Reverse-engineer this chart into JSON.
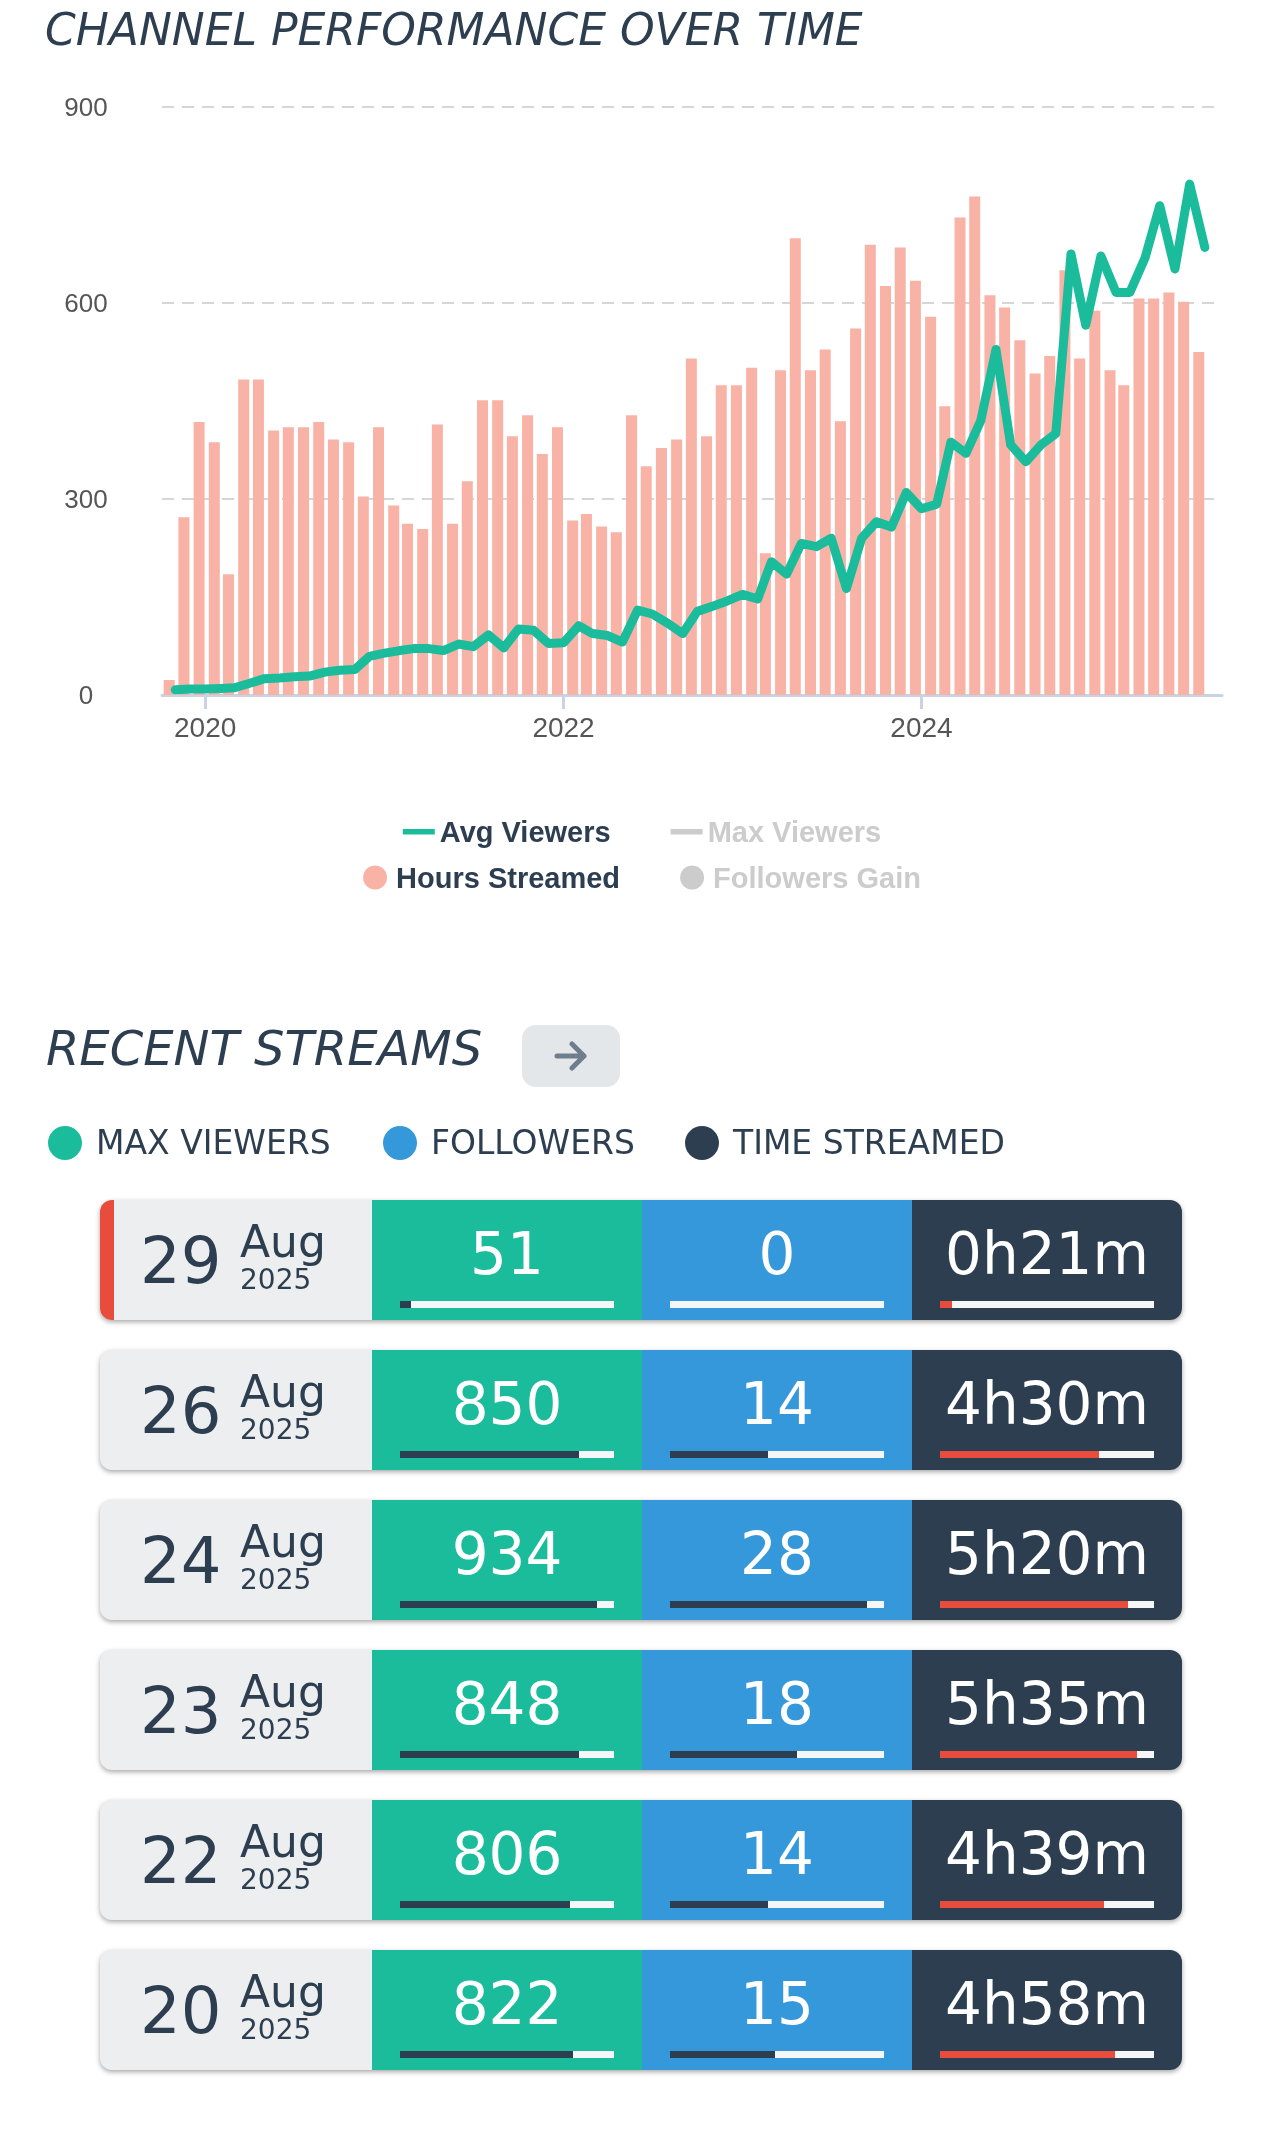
{
  "chart_data": [
    {
      "type": "bar",
      "title": "CHANNEL PERFORMANCE OVER TIME",
      "x": [
        "2019-11",
        "2019-12",
        "2020-01",
        "2020-02",
        "2020-03",
        "2020-04",
        "2020-05",
        "2020-06",
        "2020-07",
        "2020-08",
        "2020-09",
        "2020-10",
        "2020-11",
        "2020-12",
        "2021-01",
        "2021-02",
        "2021-03",
        "2021-04",
        "2021-05",
        "2021-06",
        "2021-07",
        "2021-08",
        "2021-09",
        "2021-10",
        "2021-11",
        "2021-12",
        "2022-01",
        "2022-02",
        "2022-03",
        "2022-04",
        "2022-05",
        "2022-06",
        "2022-07",
        "2022-08",
        "2022-09",
        "2022-10",
        "2022-11",
        "2022-12",
        "2023-01",
        "2023-02",
        "2023-03",
        "2023-04",
        "2023-05",
        "2023-06",
        "2023-07",
        "2023-08",
        "2023-09",
        "2023-10",
        "2023-11",
        "2023-12",
        "2024-01",
        "2024-02",
        "2024-03",
        "2024-04",
        "2024-05",
        "2024-06",
        "2024-07",
        "2024-08",
        "2024-09",
        "2024-10",
        "2024-11",
        "2024-12",
        "2025-01",
        "2025-02",
        "2025-03",
        "2025-04",
        "2025-05",
        "2025-06",
        "2025-07",
        "2025-08"
      ],
      "series": [
        {
          "name": "Avg Viewers",
          "type": "line",
          "color": "#1abc9c",
          "values": [
            8,
            9,
            9,
            10,
            11,
            18,
            25,
            26,
            28,
            29,
            35,
            38,
            39,
            59,
            64,
            68,
            71,
            71,
            68,
            78,
            74,
            92,
            72,
            101,
            99,
            79,
            80,
            106,
            94,
            91,
            81,
            130,
            124,
            110,
            94,
            128,
            136,
            144,
            154,
            147,
            204,
            185,
            232,
            227,
            240,
            163,
            240,
            265,
            257,
            310,
            285,
            292,
            387,
            370,
            420,
            529,
            383,
            357,
            383,
            400,
            675,
            566,
            672,
            616,
            616,
            669,
            749,
            652,
            782,
            685
          ]
        },
        {
          "name": "Max Viewers",
          "type": "line",
          "color": "#cccccc",
          "values": [
            null,
            null,
            null,
            null,
            null,
            null,
            null,
            null,
            null,
            null,
            null,
            null,
            null,
            null,
            null,
            null,
            null,
            null,
            null,
            null,
            null,
            null,
            null,
            null,
            null,
            null,
            null,
            null,
            null,
            null,
            null,
            null,
            null,
            null,
            null,
            null,
            null,
            null,
            null,
            null,
            null,
            null,
            null,
            null,
            null,
            null,
            null,
            null,
            null,
            null,
            null,
            null,
            null,
            null,
            null,
            null,
            null,
            null,
            null,
            null,
            null,
            null,
            null,
            null,
            null,
            null,
            null,
            null,
            null,
            null
          ]
        },
        {
          "name": "Hours Streamed",
          "type": "bar",
          "color": "#f8b2a6",
          "values": [
            23,
            272,
            418,
            387,
            185,
            483,
            483,
            405,
            410,
            410,
            418,
            391,
            387,
            304,
            410,
            290,
            262,
            254,
            414,
            262,
            327,
            451,
            451,
            396,
            428,
            369,
            410,
            267,
            277,
            258,
            249,
            428,
            350,
            378,
            391,
            515,
            396,
            474,
            474,
            501,
            217,
            497,
            699,
            497,
            529,
            419,
            561,
            689,
            626,
            685,
            634,
            579,
            442,
            731,
            763,
            612,
            593,
            543,
            492,
            519,
            650,
            515,
            588,
            497,
            474,
            607,
            607,
            616,
            602,
            525
          ]
        },
        {
          "name": "Followers Gain",
          "type": "bar",
          "color": "#cccccc",
          "values": [
            null,
            null,
            null,
            null,
            null,
            null,
            null,
            null,
            null,
            null,
            null,
            null,
            null,
            null,
            null,
            null,
            null,
            null,
            null,
            null,
            null,
            null,
            null,
            null,
            null,
            null,
            null,
            null,
            null,
            null,
            null,
            null,
            null,
            null,
            null,
            null,
            null,
            null,
            null,
            null,
            null,
            null,
            null,
            null,
            null,
            null,
            null,
            null,
            null,
            null,
            null,
            null,
            null,
            null,
            null,
            null,
            null,
            null,
            null,
            null,
            null,
            null,
            null,
            null,
            null,
            null,
            null,
            null,
            null,
            null
          ]
        }
      ],
      "xlim": [
        "2019-10-05",
        "2025-09-05"
      ],
      "xticks": [
        "2020",
        "2022",
        "2024"
      ],
      "ylim": [
        0,
        900
      ],
      "yticks": [
        0,
        300,
        600,
        900
      ],
      "grid": "y",
      "legend": "bottom",
      "marker": "none",
      "line_style": "solid"
    },
    {
      "type": "other",
      "title": "RECENT STREAMS",
      "data_labels": true,
      "legend": "top left",
      "categories": [
        "29 Aug 2025",
        "26 Aug 2025",
        "24 Aug 2025",
        "23 Aug 2025",
        "22 Aug 2025",
        "20 Aug 2025"
      ],
      "series": [
        {
          "name": "MAX VIEWERS",
          "color": "#1abc9c",
          "values": [
            51,
            850,
            934,
            848,
            806,
            822
          ]
        },
        {
          "name": "FOLLOWERS",
          "color": "#3498db",
          "values": [
            0,
            14,
            28,
            18,
            14,
            15
          ]
        },
        {
          "name": "TIME STREAMED",
          "color": "#2c3e50",
          "values": [
            null,
            null,
            null,
            null,
            null,
            null
          ],
          "value_labels": [
            "0h21m",
            "4h30m",
            "5h20m",
            "5h35m",
            "4h39m",
            "4h58m"
          ]
        }
      ]
    }
  ]
}
